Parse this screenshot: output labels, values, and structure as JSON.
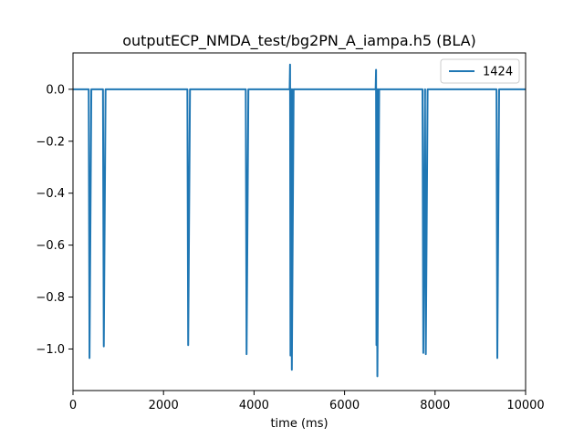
{
  "chart_data": {
    "type": "line",
    "title": "outputECP_NMDA_test/bg2PN_A_iampa.h5 (BLA)",
    "xlabel": "time (ms)",
    "ylabel": "",
    "xlim": [
      0,
      10000
    ],
    "ylim": [
      -1.16,
      0.14
    ],
    "xticks": [
      0,
      2000,
      4000,
      6000,
      8000,
      10000
    ],
    "xtick_labels": [
      "0",
      "2000",
      "4000",
      "6000",
      "8000",
      "10000"
    ],
    "yticks": [
      0.0,
      -0.2,
      -0.4,
      -0.6,
      -0.8,
      -1.0
    ],
    "ytick_labels": [
      "0.0",
      "−0.2",
      "−0.4",
      "−0.6",
      "−0.8",
      "−1.0"
    ],
    "grid": false,
    "legend_position": "top-right",
    "series": [
      {
        "name": "1424",
        "color": "#1f77b4",
        "baseline": 0.0,
        "events": [
          {
            "t": 365,
            "min": -1.035,
            "max": 0.0
          },
          {
            "t": 680,
            "min": -0.99,
            "max": 0.0
          },
          {
            "t": 2545,
            "min": -0.985,
            "max": 0.0
          },
          {
            "t": 3835,
            "min": -1.02,
            "max": 0.0
          },
          {
            "t": 4805,
            "min": -1.025,
            "max": 0.095
          },
          {
            "t": 4835,
            "min": -1.08,
            "max": 0.0
          },
          {
            "t": 6705,
            "min": -0.985,
            "max": 0.075
          },
          {
            "t": 6725,
            "min": -1.105,
            "max": 0.0
          },
          {
            "t": 7740,
            "min": -1.015,
            "max": 0.0
          },
          {
            "t": 7795,
            "min": -1.02,
            "max": 0.0
          },
          {
            "t": 9375,
            "min": -1.035,
            "max": 0.0
          }
        ]
      }
    ]
  }
}
